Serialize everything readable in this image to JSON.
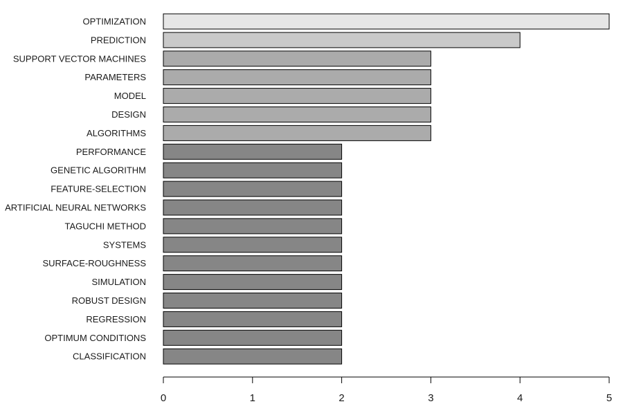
{
  "chart_data": {
    "type": "bar",
    "orientation": "horizontal",
    "title": "",
    "xlabel": "",
    "ylabel": "",
    "categories": [
      "OPTIMIZATION",
      "PREDICTION",
      "SUPPORT VECTOR MACHINES",
      "PARAMETERS",
      "MODEL",
      "DESIGN",
      "ALGORITHMS",
      "PERFORMANCE",
      "GENETIC ALGORITHM",
      "FEATURE-SELECTION",
      "ARTIFICIAL NEURAL NETWORKS",
      "TAGUCHI METHOD",
      "SYSTEMS",
      "SURFACE-ROUGHNESS",
      "SIMULATION",
      "ROBUST DESIGN",
      "REGRESSION",
      "OPTIMUM CONDITIONS",
      "CLASSIFICATION"
    ],
    "values": [
      5,
      4,
      3,
      3,
      3,
      3,
      3,
      2,
      2,
      2,
      2,
      2,
      2,
      2,
      2,
      2,
      2,
      2,
      2
    ],
    "xlim": [
      0,
      5
    ],
    "xticks": [
      "0",
      "1",
      "2",
      "3",
      "4",
      "5"
    ],
    "grid": false,
    "legend": "none",
    "colors": {
      "5": "#e6e6e6",
      "4": "#c9c9c9",
      "3": "#ababab",
      "2": "#868686",
      "stroke": "#000000"
    }
  }
}
